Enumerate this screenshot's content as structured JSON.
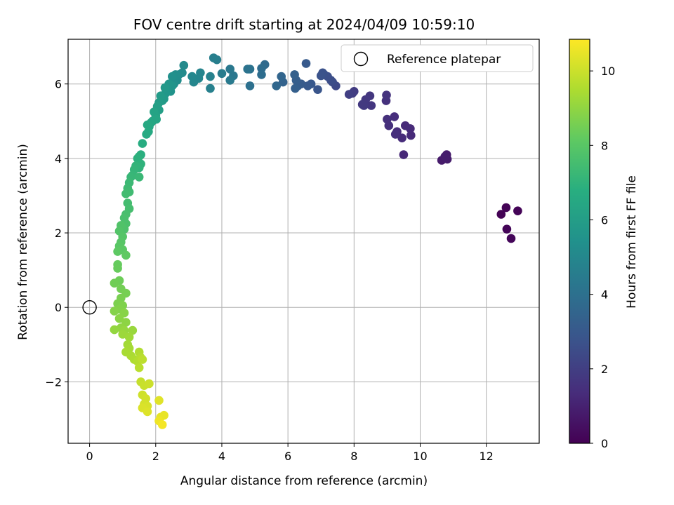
{
  "chart_data": {
    "type": "scatter",
    "title": "FOV centre drift starting at 2024/04/09 10:59:10",
    "xlabel": "Angular distance from reference (arcmin)",
    "ylabel": "Rotation from reference (arcmin)",
    "xlim": [
      -0.65,
      13.6
    ],
    "ylim": [
      -3.65,
      7.2
    ],
    "xticks": [
      0,
      2,
      4,
      6,
      8,
      10,
      12
    ],
    "yticks": [
      -2,
      0,
      2,
      4,
      6
    ],
    "ytick_labels": [
      "−2",
      "0",
      "2",
      "4",
      "6"
    ],
    "grid": true,
    "legend": {
      "placement": "top-right",
      "entries": [
        "Reference platepar"
      ]
    },
    "colorbar": {
      "label": "Hours from first FF file",
      "range": [
        0,
        10.85
      ],
      "ticks": [
        0,
        2,
        4,
        6,
        8,
        10
      ],
      "colormap": "viridis"
    },
    "reference_point": {
      "x": 0,
      "y": 0
    },
    "series": [
      {
        "points": [
          [
            12.45,
            2.5,
            0.05
          ],
          [
            12.6,
            2.68,
            0.08
          ],
          [
            12.95,
            2.59,
            0.1
          ],
          [
            12.62,
            2.1,
            0.13
          ],
          [
            12.75,
            1.85,
            0.16
          ],
          [
            10.65,
            3.95,
            0.8
          ],
          [
            10.8,
            4.1,
            0.82
          ],
          [
            10.82,
            3.98,
            0.85
          ],
          [
            10.75,
            4.05,
            0.88
          ],
          [
            9.5,
            4.1,
            1.2
          ],
          [
            9.55,
            4.88,
            1.25
          ],
          [
            9.7,
            4.8,
            1.28
          ],
          [
            9.72,
            4.62,
            1.3
          ],
          [
            9.45,
            4.55,
            1.32
          ],
          [
            9.3,
            4.72,
            1.35
          ],
          [
            9.22,
            5.12,
            1.4
          ],
          [
            9.25,
            4.65,
            1.42
          ],
          [
            9.05,
            4.88,
            1.45
          ],
          [
            9.0,
            5.05,
            1.48
          ],
          [
            8.97,
            5.55,
            1.55
          ],
          [
            8.98,
            5.7,
            1.58
          ],
          [
            8.52,
            5.42,
            1.7
          ],
          [
            8.48,
            5.68,
            1.72
          ],
          [
            8.35,
            5.58,
            1.75
          ],
          [
            8.3,
            5.42,
            1.78
          ],
          [
            8.25,
            5.45,
            1.8
          ],
          [
            8.0,
            5.8,
            1.9
          ],
          [
            7.95,
            5.75,
            1.95
          ],
          [
            7.85,
            5.72,
            2.0
          ],
          [
            7.45,
            5.95,
            2.4
          ],
          [
            7.35,
            6.05,
            2.5
          ],
          [
            7.3,
            6.1,
            2.55
          ],
          [
            7.2,
            6.2,
            2.6
          ],
          [
            7.1,
            6.25,
            2.65
          ],
          [
            7.05,
            6.3,
            2.7
          ],
          [
            7.0,
            6.22,
            2.75
          ],
          [
            6.9,
            5.85,
            2.85
          ],
          [
            6.7,
            6.0,
            2.95
          ],
          [
            6.6,
            5.95,
            3.0
          ],
          [
            6.55,
            6.55,
            3.05
          ],
          [
            6.4,
            6.0,
            3.1
          ],
          [
            6.3,
            5.95,
            3.15
          ],
          [
            6.25,
            6.1,
            3.2
          ],
          [
            6.22,
            5.88,
            3.25
          ],
          [
            6.2,
            6.25,
            3.3
          ],
          [
            5.85,
            6.05,
            3.45
          ],
          [
            5.8,
            6.2,
            3.5
          ],
          [
            5.65,
            5.95,
            3.6
          ],
          [
            5.3,
            6.52,
            3.75
          ],
          [
            5.2,
            6.42,
            3.8
          ],
          [
            5.2,
            6.25,
            3.85
          ],
          [
            4.85,
            5.95,
            4.0
          ],
          [
            4.85,
            6.4,
            4.05
          ],
          [
            4.78,
            6.4,
            4.1
          ],
          [
            4.35,
            6.22,
            4.3
          ],
          [
            4.25,
            6.4,
            4.35
          ],
          [
            4.25,
            6.1,
            4.4
          ],
          [
            4.0,
            6.28,
            4.5
          ],
          [
            3.85,
            6.65,
            4.6
          ],
          [
            3.75,
            6.7,
            4.62
          ],
          [
            3.65,
            5.88,
            4.7
          ],
          [
            3.65,
            6.2,
            4.72
          ],
          [
            3.35,
            6.3,
            4.85
          ],
          [
            3.3,
            6.15,
            4.9
          ],
          [
            3.15,
            6.05,
            4.95
          ],
          [
            3.1,
            6.2,
            5.0
          ],
          [
            2.85,
            6.5,
            5.1
          ],
          [
            2.8,
            6.3,
            5.15
          ],
          [
            2.7,
            6.25,
            5.2
          ],
          [
            2.65,
            6.1,
            5.25
          ],
          [
            2.6,
            6.25,
            5.3
          ],
          [
            2.55,
            6.0,
            5.35
          ],
          [
            2.5,
            6.2,
            5.4
          ],
          [
            2.45,
            5.8,
            5.5
          ],
          [
            2.5,
            5.95,
            5.55
          ],
          [
            2.4,
            6.0,
            5.6
          ],
          [
            2.35,
            5.85,
            5.65
          ],
          [
            2.3,
            5.75,
            5.7
          ],
          [
            2.28,
            5.9,
            5.75
          ],
          [
            2.25,
            5.6,
            5.8
          ],
          [
            2.2,
            5.55,
            5.85
          ],
          [
            2.15,
            5.68,
            5.9
          ],
          [
            2.1,
            5.5,
            5.95
          ],
          [
            2.1,
            5.3,
            6.05
          ],
          [
            2.05,
            5.4,
            6.1
          ],
          [
            2.0,
            5.15,
            6.2
          ],
          [
            1.95,
            5.25,
            6.25
          ],
          [
            1.9,
            5.0,
            6.3
          ],
          [
            2.02,
            5.05,
            6.35
          ],
          [
            1.85,
            4.95,
            6.4
          ],
          [
            1.8,
            4.85,
            6.45
          ],
          [
            1.75,
            4.9,
            6.5
          ],
          [
            1.78,
            4.72,
            6.55
          ],
          [
            1.72,
            4.65,
            6.6
          ],
          [
            1.6,
            4.4,
            6.7
          ],
          [
            1.55,
            4.1,
            6.8
          ],
          [
            1.5,
            4.05,
            6.85
          ],
          [
            1.45,
            4.0,
            6.9
          ],
          [
            1.55,
            3.85,
            6.95
          ],
          [
            1.5,
            3.75,
            7.0
          ],
          [
            1.4,
            3.8,
            7.05
          ],
          [
            1.35,
            3.7,
            7.1
          ],
          [
            1.3,
            3.55,
            7.15
          ],
          [
            1.25,
            3.5,
            7.2
          ],
          [
            1.5,
            3.5,
            7.25
          ],
          [
            1.2,
            3.35,
            7.3
          ],
          [
            1.15,
            3.2,
            7.35
          ],
          [
            1.2,
            3.1,
            7.4
          ],
          [
            1.1,
            3.05,
            7.45
          ],
          [
            1.15,
            2.8,
            7.5
          ],
          [
            1.2,
            2.65,
            7.55
          ],
          [
            1.1,
            2.5,
            7.6
          ],
          [
            1.05,
            2.4,
            7.65
          ],
          [
            1.1,
            2.25,
            7.7
          ],
          [
            1.05,
            2.1,
            7.75
          ],
          [
            0.95,
            2.2,
            7.8
          ],
          [
            0.9,
            2.05,
            7.85
          ],
          [
            1.0,
            1.9,
            7.9
          ],
          [
            0.95,
            1.75,
            7.95
          ],
          [
            0.9,
            1.65,
            8.0
          ],
          [
            1.0,
            1.55,
            8.05
          ],
          [
            0.85,
            1.5,
            8.1
          ],
          [
            1.1,
            1.4,
            8.15
          ],
          [
            0.85,
            1.15,
            8.25
          ],
          [
            0.85,
            1.05,
            8.3
          ],
          [
            0.9,
            0.72,
            8.4
          ],
          [
            0.75,
            0.65,
            8.45
          ],
          [
            0.95,
            0.5,
            8.5
          ],
          [
            1.1,
            0.38,
            8.55
          ],
          [
            0.95,
            0.25,
            8.6
          ],
          [
            0.85,
            0.1,
            8.65
          ],
          [
            1.0,
            0.05,
            8.7
          ],
          [
            0.9,
            -0.05,
            8.75
          ],
          [
            0.75,
            -0.1,
            8.8
          ],
          [
            1.05,
            -0.15,
            8.85
          ],
          [
            0.9,
            -0.3,
            8.9
          ],
          [
            1.1,
            -0.4,
            8.95
          ],
          [
            0.95,
            -0.55,
            9.0
          ],
          [
            0.75,
            -0.6,
            9.05
          ],
          [
            1.05,
            -0.62,
            9.1
          ],
          [
            1.3,
            -0.62,
            9.15
          ],
          [
            1.0,
            -0.72,
            9.2
          ],
          [
            1.2,
            -0.8,
            9.25
          ],
          [
            1.15,
            -1.0,
            9.3
          ],
          [
            1.2,
            -1.1,
            9.35
          ],
          [
            1.1,
            -1.2,
            9.4
          ],
          [
            1.25,
            -1.3,
            9.45
          ],
          [
            1.35,
            -1.4,
            9.5
          ],
          [
            1.5,
            -1.2,
            9.55
          ],
          [
            1.45,
            -1.45,
            9.6
          ],
          [
            1.55,
            -1.35,
            9.65
          ],
          [
            1.5,
            -1.62,
            9.7
          ],
          [
            1.6,
            -1.4,
            9.75
          ],
          [
            1.55,
            -2.0,
            9.9
          ],
          [
            1.65,
            -2.1,
            9.95
          ],
          [
            1.8,
            -2.05,
            10.0
          ],
          [
            1.6,
            -2.35,
            10.05
          ],
          [
            1.7,
            -2.45,
            10.1
          ],
          [
            1.65,
            -2.6,
            10.15
          ],
          [
            1.75,
            -2.65,
            10.2
          ],
          [
            1.6,
            -2.7,
            10.25
          ],
          [
            1.75,
            -2.8,
            10.3
          ],
          [
            2.1,
            -2.5,
            10.35
          ],
          [
            2.15,
            -2.95,
            10.45
          ],
          [
            2.25,
            -2.9,
            10.5
          ],
          [
            2.1,
            -3.05,
            10.6
          ],
          [
            2.2,
            -3.15,
            10.7
          ]
        ]
      }
    ]
  }
}
